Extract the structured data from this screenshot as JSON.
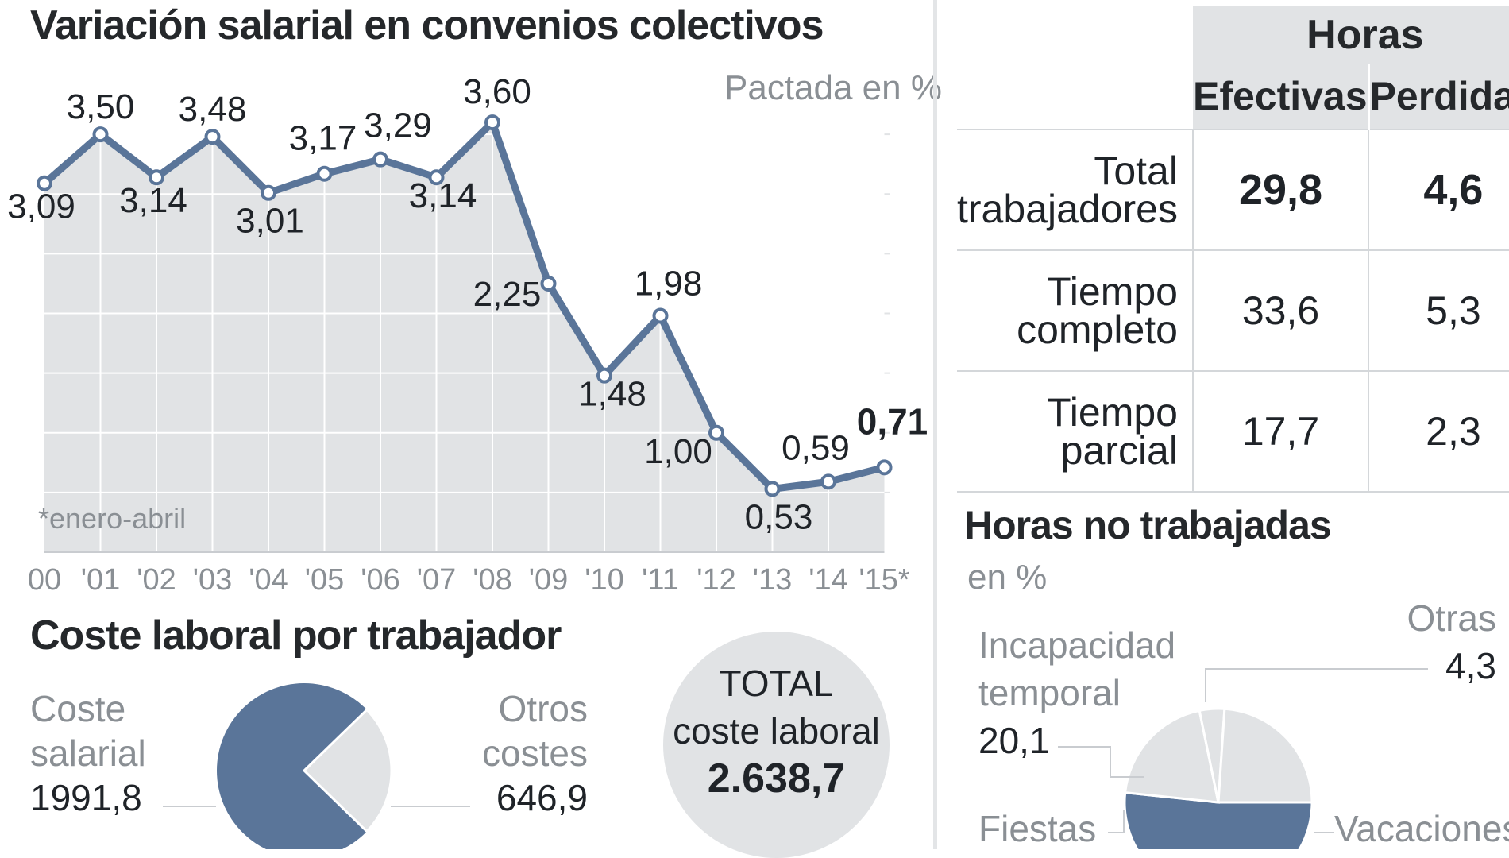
{
  "line_chart": {
    "title": "Variación salarial en convenios colectivos",
    "unit_note": "Pactada en %",
    "footnote": "*enero-abril"
  },
  "coste": {
    "title": "Coste laboral por trabajador",
    "salarial_label_1": "Coste",
    "salarial_label_2": "salarial",
    "salarial_value": "1991,8",
    "otros_label_1": "Otros",
    "otros_label_2": "costes",
    "otros_value": "646,9",
    "total_label_1": "TOTAL",
    "total_label_2": "coste laboral",
    "total_value": "2.638,7"
  },
  "horas_table": {
    "group_header": "Horas",
    "col_efectivas": "Efectivas",
    "col_perdidas": "Perdidas",
    "rows": [
      {
        "label_1": "Total",
        "label_2": "trabajadores",
        "efectivas": "29,8",
        "perdidas": "4,6"
      },
      {
        "label_1": "Tiempo",
        "label_2": "completo",
        "efectivas": "33,6",
        "perdidas": "5,3"
      },
      {
        "label_1": "Tiempo",
        "label_2": "parcial",
        "efectivas": "17,7",
        "perdidas": "2,3"
      }
    ]
  },
  "no_trabajadas": {
    "title": "Horas no trabajadas",
    "subtitle": "en %",
    "otras_label": "Otras",
    "otras_value": "4,3",
    "incap_label_1": "Incapacidad",
    "incap_label_2": "temporal",
    "incap_value": "20,1",
    "fiestas_label": "Fiestas",
    "vacaciones_label": "Vacaciones"
  },
  "colors": {
    "accent": "#5a7599",
    "grid_fill": "#e1e3e5",
    "pie_light": "#e1e3e5",
    "text_dark": "#1f2328",
    "text_grey": "#8a8f94"
  },
  "chart_data": [
    {
      "type": "line",
      "title": "Variación salarial en convenios colectivos",
      "ylabel": "Pactada en %",
      "x": [
        "00",
        "'01",
        "'02",
        "'03",
        "'04",
        "'05",
        "'06",
        "'07",
        "'08",
        "'09",
        "'10",
        "'11",
        "'12",
        "'13",
        "'14",
        "'15*"
      ],
      "labels": [
        "3,09",
        "3,50",
        "3,14",
        "3,48",
        "3,01",
        "3,17",
        "3,29",
        "3,14",
        "3,60",
        "2,25",
        "1,48",
        "1,98",
        "1,00",
        "0,53",
        "0,59",
        "0,71"
      ],
      "series": [
        {
          "values": [
            3.09,
            3.5,
            3.14,
            3.48,
            3.01,
            3.17,
            3.29,
            3.14,
            3.6,
            2.25,
            1.48,
            1.98,
            1.0,
            0.53,
            0.59,
            0.71
          ]
        }
      ],
      "ylim": [
        0,
        4
      ],
      "grid": true
    },
    {
      "type": "pie",
      "title": "Coste laboral por trabajador",
      "categories": [
        "Coste salarial",
        "Otros costes"
      ],
      "values": [
        1991.8,
        646.9
      ]
    },
    {
      "type": "pie",
      "title": "Horas no trabajadas",
      "categories": [
        "Vacaciones",
        "Incapacidad temporal",
        "Otras",
        "Fiestas"
      ],
      "values": [
        null,
        20.1,
        4.3,
        null
      ]
    }
  ]
}
